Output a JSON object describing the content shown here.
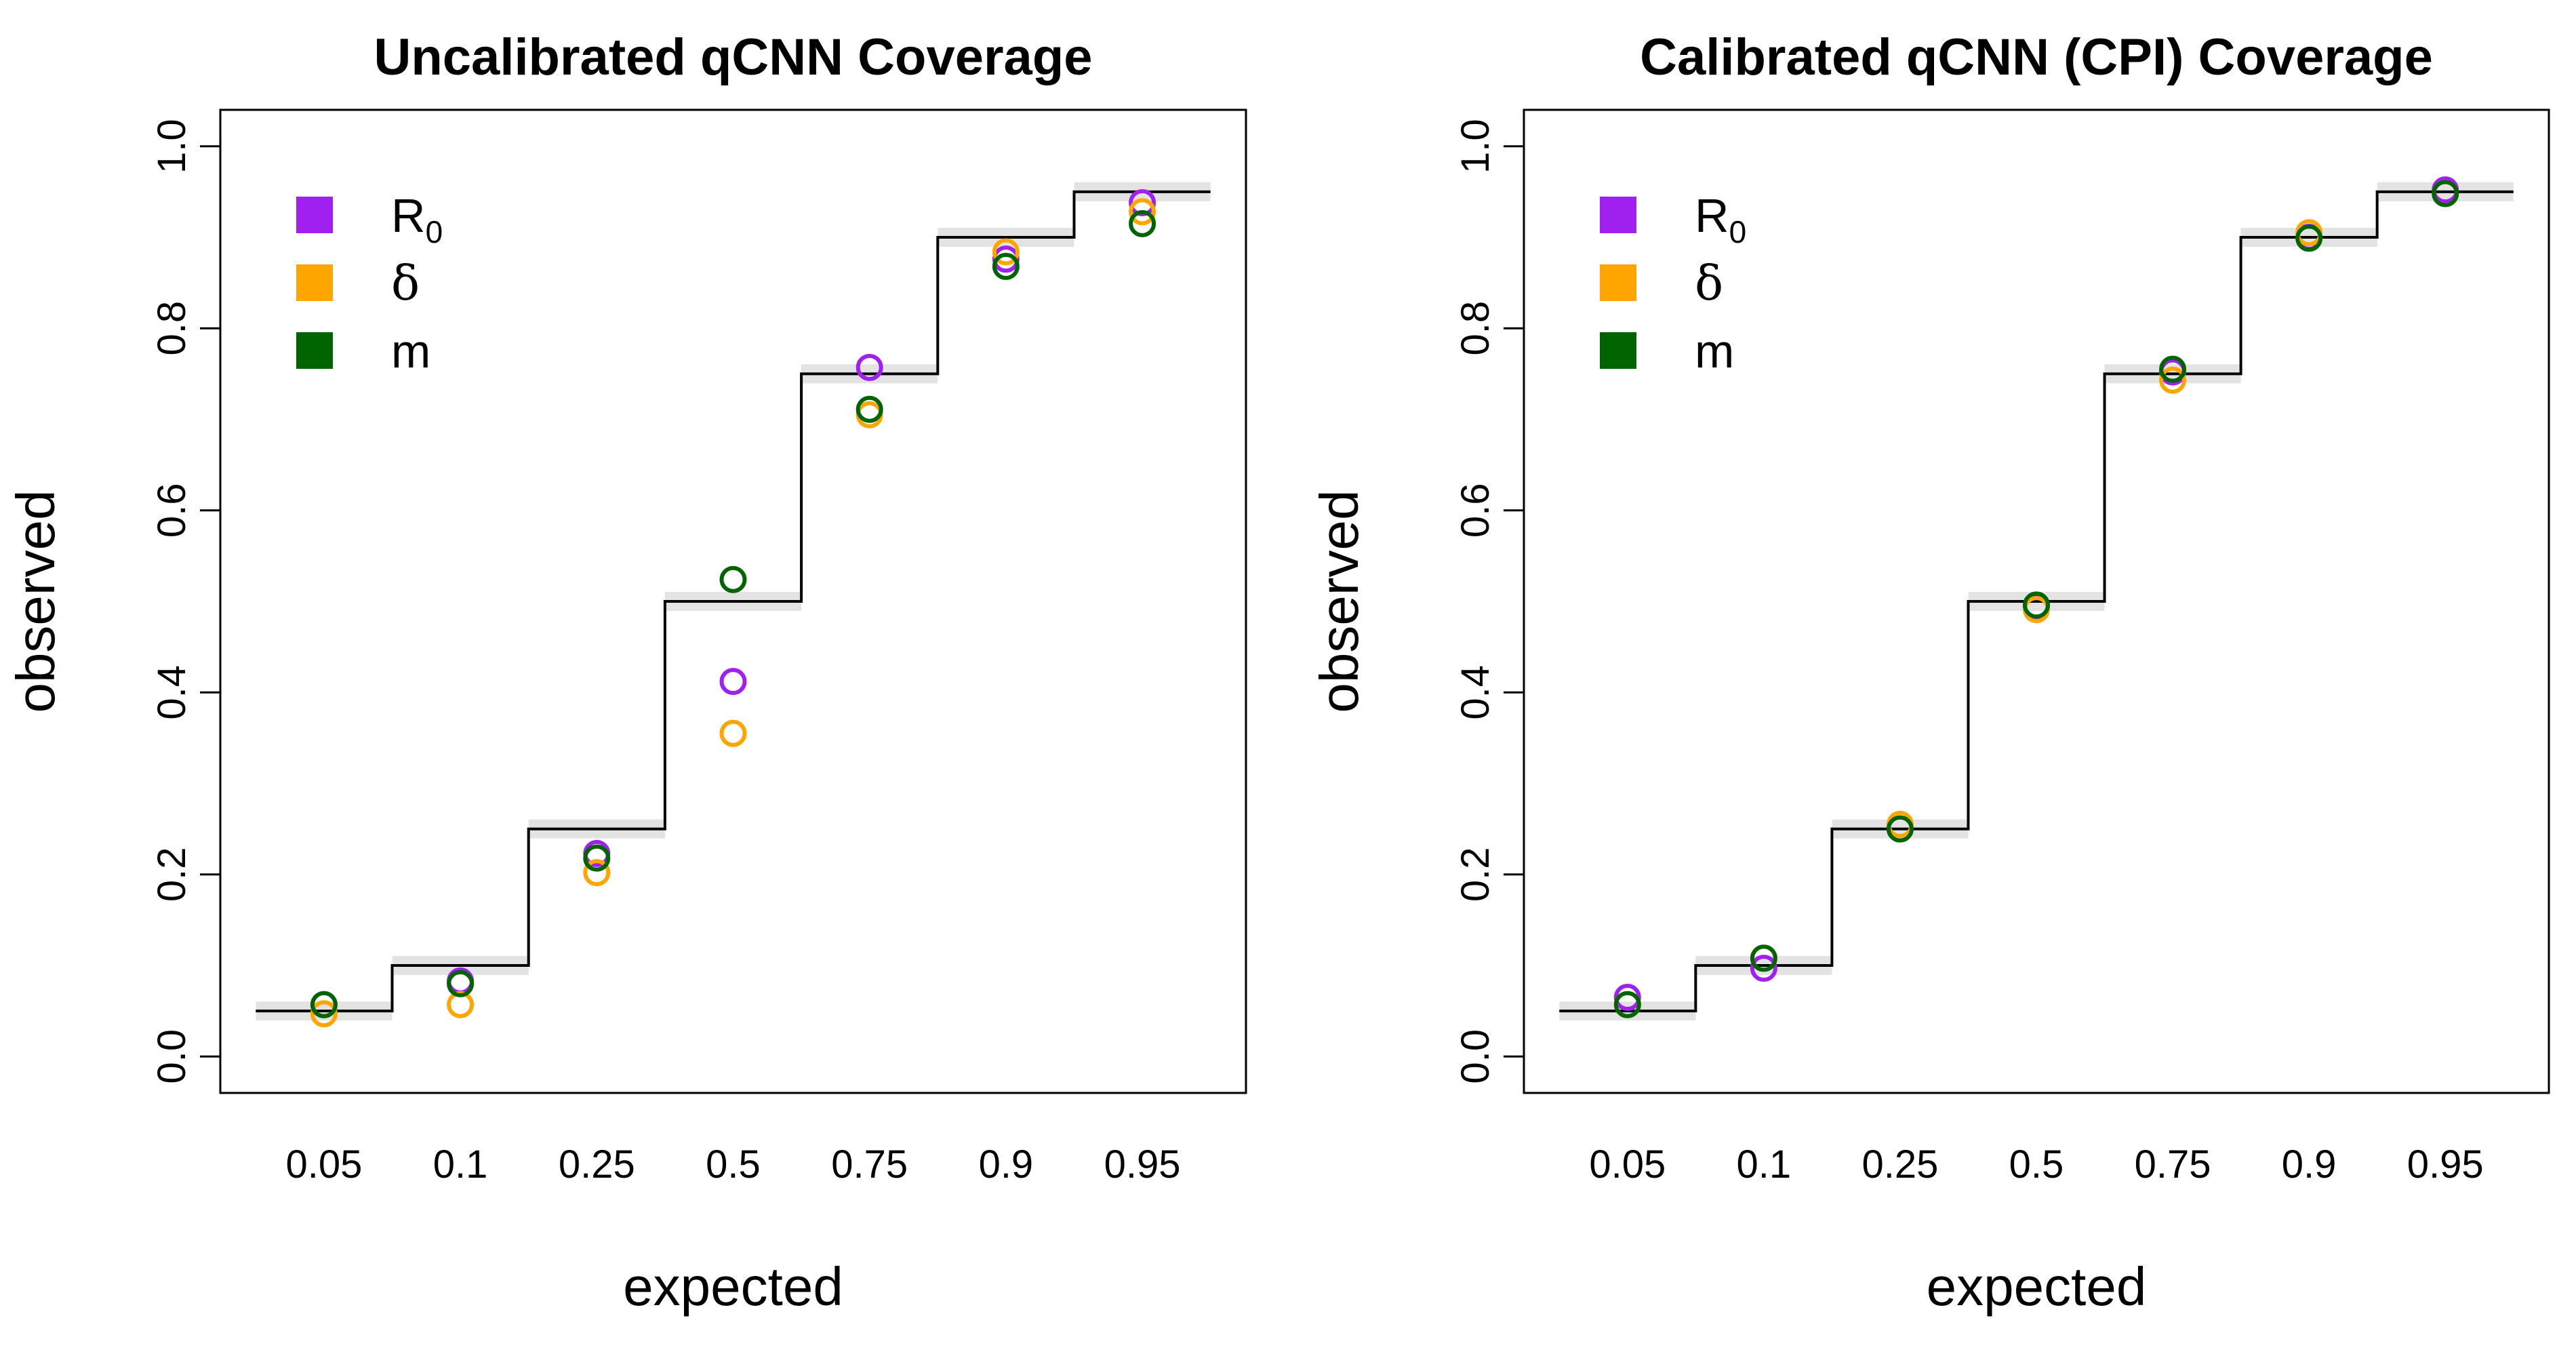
{
  "chart_data": [
    {
      "type": "scatter",
      "title": "Uncalibrated qCNN Coverage",
      "xlabel": "expected",
      "ylabel": "observed",
      "categories": [
        "0.05",
        "0.1",
        "0.25",
        "0.5",
        "0.75",
        "0.9",
        "0.95"
      ],
      "ylim": [
        0,
        1
      ],
      "yticks": [
        "0.0",
        "0.2",
        "0.4",
        "0.6",
        "0.8",
        "1.0"
      ],
      "reference_steps": [
        0.05,
        0.1,
        0.25,
        0.5,
        0.75,
        0.9,
        0.95
      ],
      "legend_position": "top-left",
      "series": [
        {
          "name": "R",
          "subscript": "0",
          "color": "#a020f0",
          "values": [
            0.057,
            0.083,
            0.223,
            0.412,
            0.757,
            0.876,
            0.938
          ]
        },
        {
          "name": "δ",
          "subscript": "",
          "color": "#ffa500",
          "values": [
            0.047,
            0.057,
            0.202,
            0.355,
            0.705,
            0.884,
            0.928
          ]
        },
        {
          "name": "m",
          "subscript": "",
          "color": "#006400",
          "values": [
            0.057,
            0.08,
            0.218,
            0.524,
            0.711,
            0.868,
            0.915
          ]
        }
      ]
    },
    {
      "type": "scatter",
      "title": "Calibrated qCNN (CPI) Coverage",
      "xlabel": "expected",
      "ylabel": "observed",
      "categories": [
        "0.05",
        "0.1",
        "0.25",
        "0.5",
        "0.75",
        "0.9",
        "0.95"
      ],
      "ylim": [
        0,
        1
      ],
      "yticks": [
        "0.0",
        "0.2",
        "0.4",
        "0.6",
        "0.8",
        "1.0"
      ],
      "reference_steps": [
        0.05,
        0.1,
        0.25,
        0.5,
        0.75,
        0.9,
        0.95
      ],
      "legend_position": "top-left",
      "series": [
        {
          "name": "R",
          "subscript": "0",
          "color": "#a020f0",
          "values": [
            0.065,
            0.097,
            0.25,
            0.495,
            0.752,
            0.9,
            0.952
          ]
        },
        {
          "name": "δ",
          "subscript": "",
          "color": "#ffa500",
          "values": [
            0.057,
            0.108,
            0.255,
            0.491,
            0.743,
            0.905,
            0.948
          ]
        },
        {
          "name": "m",
          "subscript": "",
          "color": "#006400",
          "values": [
            0.057,
            0.108,
            0.25,
            0.496,
            0.755,
            0.899,
            0.948
          ]
        }
      ]
    }
  ]
}
